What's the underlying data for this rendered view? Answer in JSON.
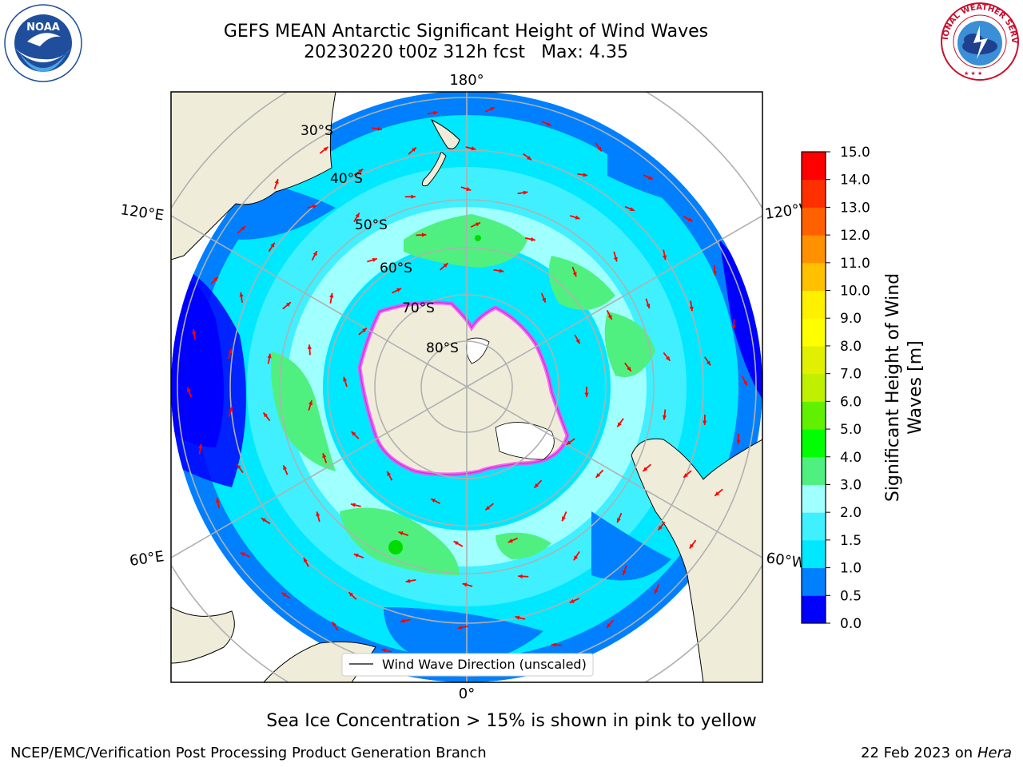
{
  "header": {
    "title_line1": "GEFS MEAN Antarctic Significant Height of Wind Waves",
    "title_run": "20230220 t00z 312h fcst",
    "title_max": "Max: 4.35"
  },
  "logos": {
    "left": {
      "name": "noaa-logo",
      "text": "NOAA",
      "ring_text": "NATIONAL OCEANIC AND ATMOSPHERIC ADMINISTRATION · U.S. DEPARTMENT OF COMMERCE"
    },
    "right": {
      "name": "nws-logo",
      "ring_text": "NATIONAL WEATHER SERVICE"
    }
  },
  "map": {
    "projection": "south-polar-stereographic",
    "latitude_labels": [
      "30°S",
      "40°S",
      "50°S",
      "60°S",
      "70°S",
      "80°S"
    ],
    "longitude_labels": {
      "top": "180°",
      "bottom": "0°",
      "upper_left": "120°E",
      "lower_left": "60°E",
      "upper_right": "120°W",
      "lower_right": "60°W"
    },
    "legend_label": "Wind Wave Direction (unscaled)",
    "colors": {
      "land": "#efedda",
      "ocean_lt_0_5": "#0000ff",
      "ocean_0_5_1": "#0080ff",
      "ocean_1_1_5": "#00e8ff",
      "ocean_1_5_2": "#40f0ff",
      "ocean_2_3": "#a0ffff",
      "ocean_3_4": "#50f080",
      "ocean_4_5": "#00dc00",
      "arrow": "#ff0000",
      "ice": "#ff40ff",
      "grid": "#b0b0b0"
    }
  },
  "colorbar": {
    "label_line1": "Significant Height of Wind",
    "label_line2": "Waves [m]",
    "ticks": [
      "0.0",
      "0.5",
      "1.0",
      "1.5",
      "2.0",
      "3.0",
      "4.0",
      "5.0",
      "6.0",
      "7.0",
      "8.0",
      "9.0",
      "10.0",
      "11.0",
      "12.0",
      "13.0",
      "14.0",
      "15.0"
    ],
    "colors": [
      "#0000ff",
      "#0080ff",
      "#00e8ff",
      "#40f0ff",
      "#a0ffff",
      "#50f080",
      "#00ff00",
      "#60f000",
      "#c0f000",
      "#e0f000",
      "#ffff00",
      "#fff000",
      "#ffc000",
      "#ff9000",
      "#ff6000",
      "#ff3000",
      "#ff0000"
    ]
  },
  "caption": "Sea Ice Concentration > 15% is shown in pink to yellow",
  "footer": {
    "left": "NCEP/EMC/Verification Post Processing Product Generation Branch",
    "right_date": "22 Feb 2023 on",
    "right_host": "Hera"
  }
}
